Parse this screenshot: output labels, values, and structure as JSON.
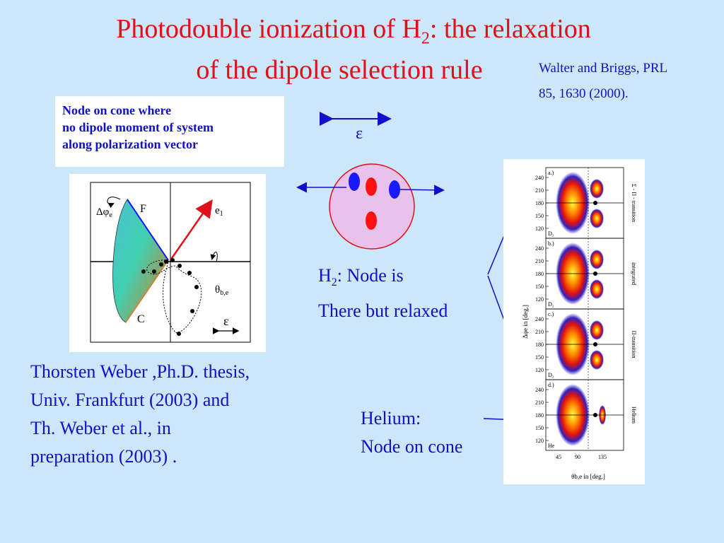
{
  "title": {
    "line1_pre": "Photodouble ionization of H",
    "line1_sub": "2",
    "line1_post": ": the relaxation",
    "line2": "of the dipole selection rule"
  },
  "reference": {
    "line1": "Walter and Briggs, PRL",
    "line2": "85, 1630 (2000)."
  },
  "node_box": [
    "Node on cone where",
    "no dipole moment of system",
    "along polarization vector"
  ],
  "polarization_symbol": "ε",
  "left_figure": {
    "label_F": "F",
    "label_C": "C",
    "label_e1": "e",
    "label_e1_sub": "1",
    "label_dphi": "Δφ",
    "label_dphi_sub": "e",
    "label_theta": "θ",
    "label_theta_sub": "b,e",
    "label_eps": "ε"
  },
  "credit": [
    "Thorsten Weber ,Ph.D. thesis,",
    "Univ. Frankfurt (2003) and",
    "Th. Weber et al., in",
    "preparation (2003) ."
  ],
  "h2_note": {
    "pre": "H",
    "sub": "2",
    "post": ": Node is",
    "line2": "There but relaxed"
  },
  "helium_note": [
    "Helium:",
    "Node on cone"
  ],
  "right_figure": {
    "panels": [
      {
        "tag": "a.)",
        "side": "Σ - Π - transition",
        "foot": "D₂"
      },
      {
        "tag": "b.)",
        "side": "integrated",
        "foot": "D₂"
      },
      {
        "tag": "c.)",
        "side": "Π-transition",
        "foot": "D₂"
      },
      {
        "tag": "d.)",
        "side": "Helium",
        "foot": "He"
      }
    ],
    "y_ticks": [
      "240",
      "210",
      "180",
      "150",
      "120"
    ],
    "x_ticks": [
      "45",
      "90",
      "135"
    ],
    "y_label": "Δφe in [deg.]",
    "x_label": "θb,e in [deg.]"
  },
  "colors": {
    "title": "#e0101a",
    "text": "#1010c8",
    "background": "#cce6fa"
  }
}
